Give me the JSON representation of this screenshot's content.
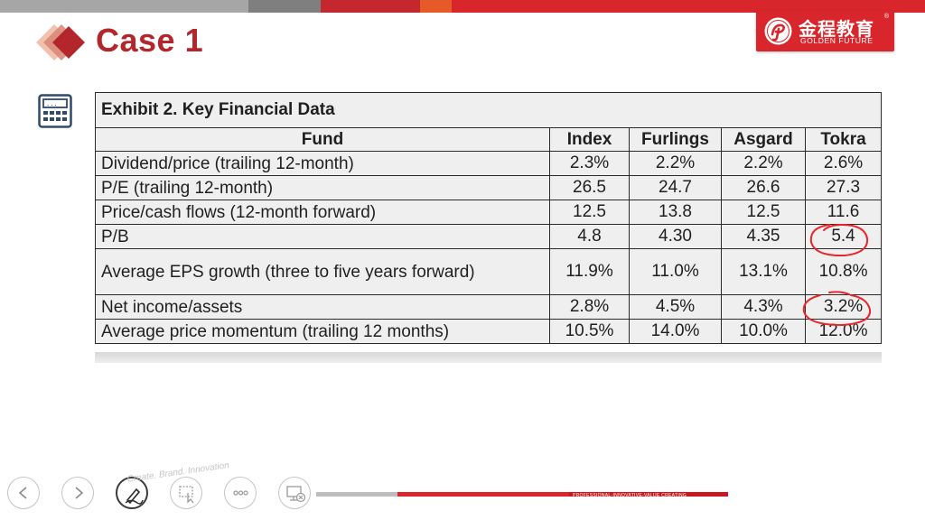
{
  "colors": {
    "brand_red": "#d9262c",
    "title_red": "#b3262b",
    "annotation_red": "#e8262a",
    "table_bg": "#efefef"
  },
  "slide": {
    "title": "Case 1"
  },
  "logo": {
    "chinese": "金程教育",
    "english": "GOLDEN FUTURE",
    "registered": "®"
  },
  "exhibit": {
    "caption": "Exhibit 2. Key Financial Data",
    "columns": [
      "Fund",
      "Index",
      "Furlings",
      "Asgard",
      "Tokra"
    ],
    "rows": [
      {
        "label": "Dividend/price (trailing 12-month)",
        "values": [
          "2.3%",
          "2.2%",
          "2.2%",
          "2.6%"
        ]
      },
      {
        "label": "P/E (trailing 12-month)",
        "values": [
          "26.5",
          "24.7",
          "26.6",
          "27.3"
        ]
      },
      {
        "label": "Price/cash flows (12-month forward)",
        "values": [
          "12.5",
          "13.8",
          "12.5",
          "11.6"
        ]
      },
      {
        "label": "P/B",
        "values": [
          "4.8",
          "4.30",
          "4.35",
          "5.4"
        ]
      },
      {
        "label": "Average EPS growth (three to five years forward)",
        "values": [
          "11.9%",
          "11.0%",
          "13.1%",
          "10.8%"
        ]
      },
      {
        "label": "Net income/assets",
        "values": [
          "2.8%",
          "4.5%",
          "4.3%",
          "3.2%"
        ]
      },
      {
        "label": "Average price momentum (trailing 12 months)",
        "values": [
          "10.5%",
          "14.0%",
          "10.0%",
          "12.0%"
        ]
      }
    ]
  },
  "toolbar": {
    "icons": [
      "previous-icon",
      "next-icon",
      "pen-icon",
      "pointer-icon",
      "more-icon",
      "end-show-icon"
    ],
    "slogan": "Create. Brand. Innovation",
    "footer_text": "PROFESSIONAL-INNOVATIVE-VALUE CREATING"
  }
}
